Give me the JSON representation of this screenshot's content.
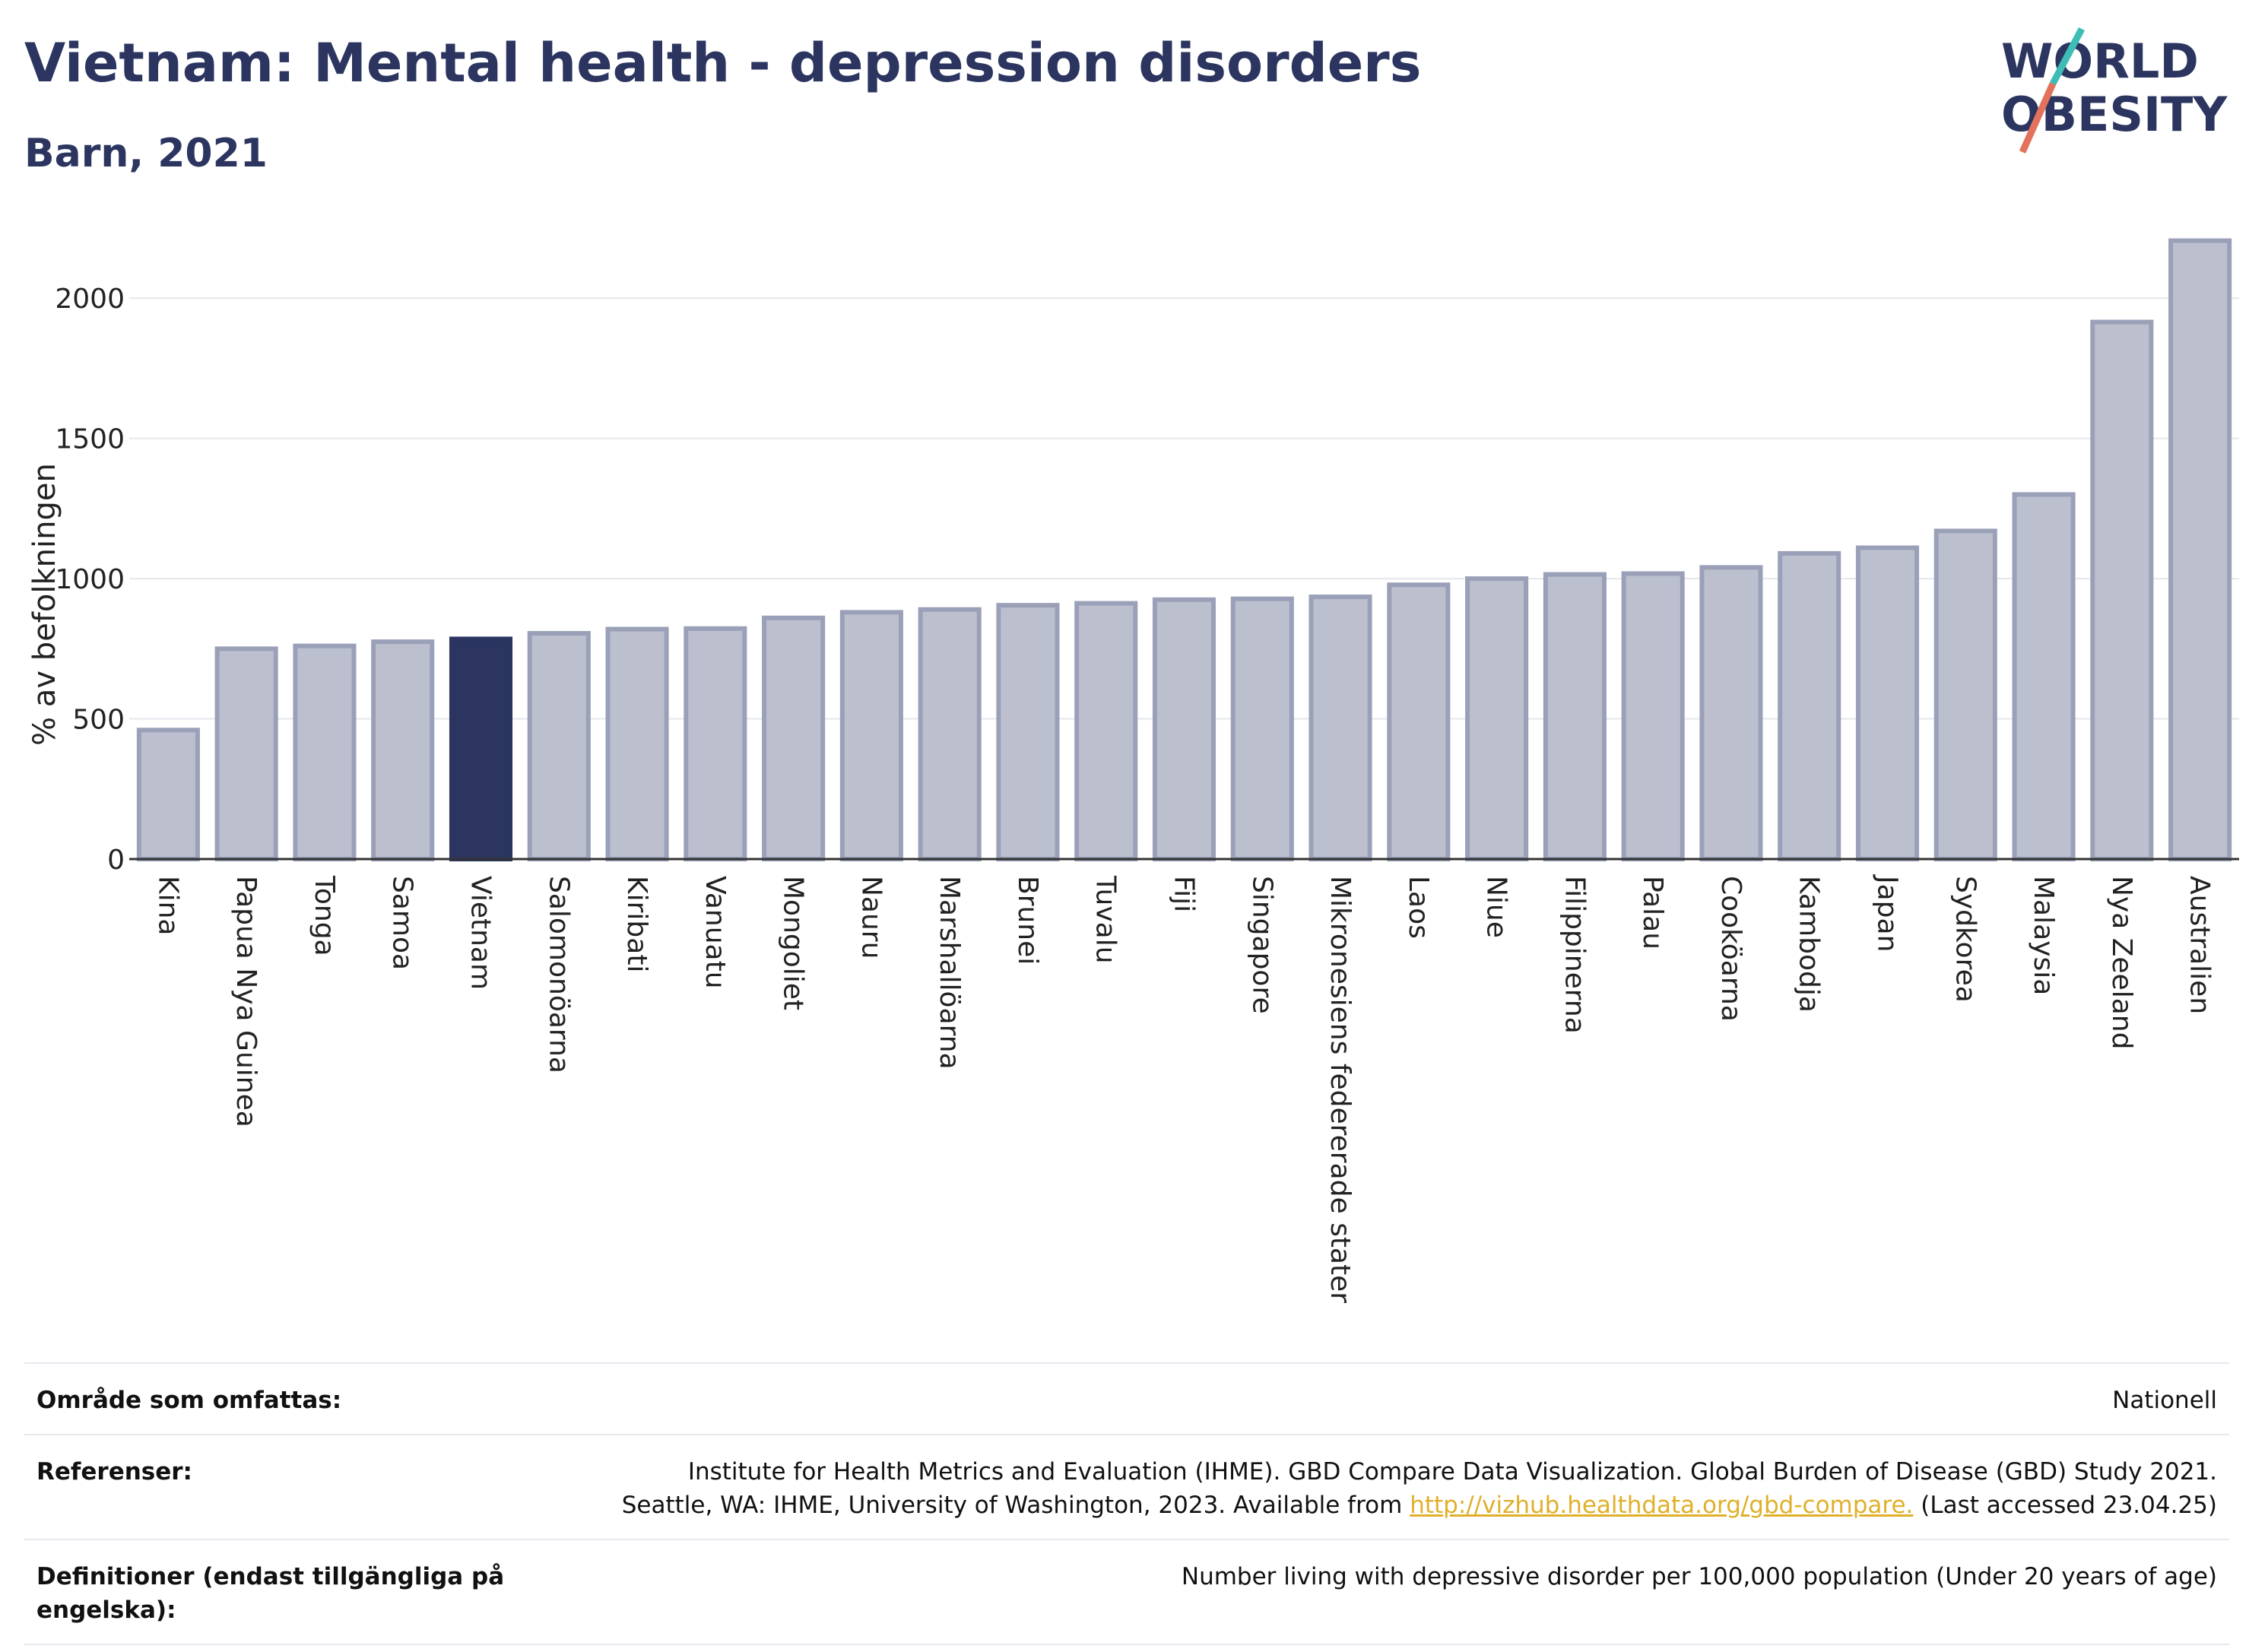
{
  "header": {
    "title": "Vietnam: Mental health - depression disorders",
    "subtitle": "Barn, 2021"
  },
  "logo": {
    "line1": "WORLD",
    "line2": "OBESITY",
    "accent_teal": "#3dbdb5",
    "accent_red": "#e2725b",
    "text_color": "#2b3560"
  },
  "chart_data": {
    "type": "bar",
    "ylabel": "% av befolkningen",
    "ylim": [
      0,
      2250
    ],
    "yticks": [
      0,
      500,
      1000,
      1500,
      2000
    ],
    "grid": true,
    "highlight": "Vietnam",
    "colors": {
      "default": "#bcc0ce",
      "default_edge": "#9aa0b8",
      "highlight": "#2b3560"
    },
    "categories": [
      "Kina",
      "Papua Nya Guinea",
      "Tonga",
      "Samoa",
      "Vietnam",
      "Salomonöarna",
      "Kiribati",
      "Vanuatu",
      "Mongoliet",
      "Nauru",
      "Marshallöarna",
      "Brunei",
      "Tuvalu",
      "Fiji",
      "Singapore",
      "Mikronesiens federerade stater",
      "Laos",
      "Niue",
      "Filippinerna",
      "Palau",
      "Cooköarna",
      "Kambodja",
      "Japan",
      "Sydkorea",
      "Malaysia",
      "Nya Zeeland",
      "Australien"
    ],
    "values": [
      460,
      750,
      760,
      775,
      785,
      805,
      820,
      822,
      860,
      880,
      890,
      905,
      912,
      925,
      928,
      935,
      978,
      1000,
      1015,
      1018,
      1040,
      1090,
      1110,
      1170,
      1300,
      1915,
      2205
    ]
  },
  "footer": {
    "rows": [
      {
        "key": "Område som omfattas:",
        "value": "Nationell"
      },
      {
        "key": "Referenser:",
        "value_line1": "Institute for Health Metrics and Evaluation (IHME). GBD Compare Data Visualization. Global Burden of Disease (GBD) Study 2021.",
        "value_line2_pre": "Seattle, WA: IHME, University of Washington, 2023. Available from ",
        "link": "http://vizhub.healthdata.org/gbd-compare.",
        "value_line2_post": " (Last accessed 23.04.25)"
      },
      {
        "key": "Definitioner (endast tillgängliga på engelska):",
        "value": "Number living with depressive disorder per 100,000 population (Under 20 years of age)"
      }
    ]
  }
}
